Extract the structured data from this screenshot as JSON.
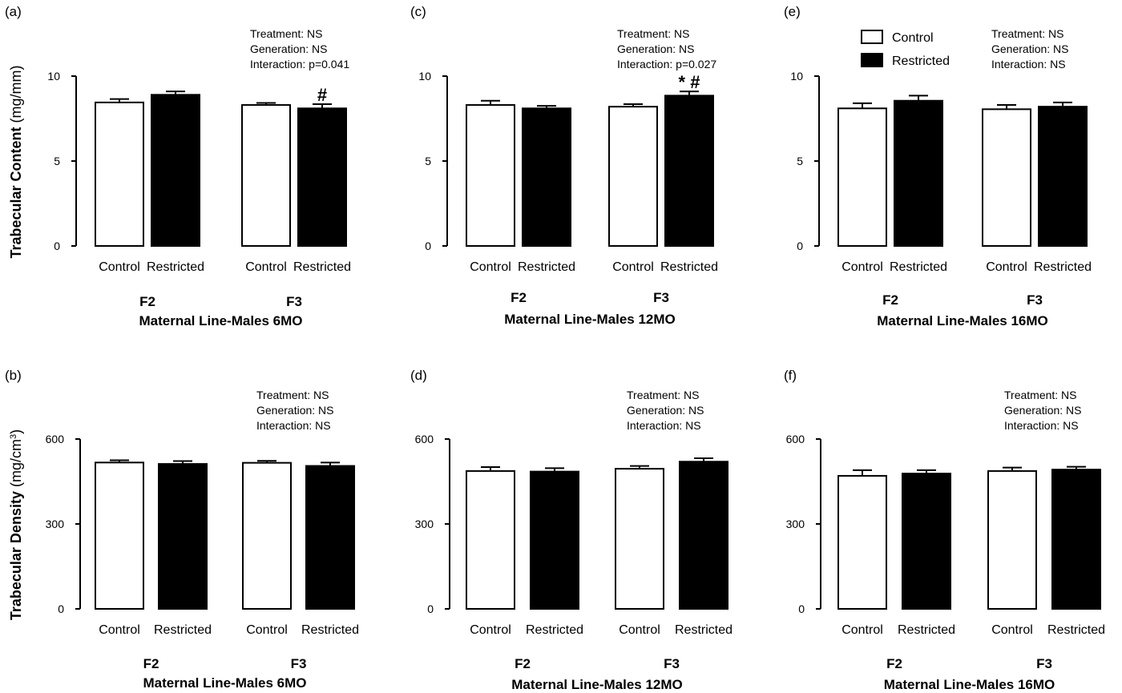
{
  "y_titles": {
    "content": {
      "main": "Trabecular Content",
      "unit": "(mg/mm)"
    },
    "density": {
      "main": "Trabecular Density",
      "unit_pre": "(mg/cm",
      "unit_sup": "3",
      "unit_post": ")"
    }
  },
  "legend": [
    {
      "label": "Control",
      "color": "#ffffff"
    },
    {
      "label": "Restricted",
      "color": "#000000"
    }
  ],
  "chart_data": [
    {
      "panel": "(a)",
      "type": "bar",
      "xlabel": "Maternal Line-Males 6MO",
      "ylabel": "Trabecular Content (mg/mm)",
      "ylim": [
        0,
        10
      ],
      "yticks": [
        0,
        5,
        10
      ],
      "groups": [
        "F2",
        "F3"
      ],
      "categories": [
        "Control",
        "Restricted"
      ],
      "series": [
        {
          "name": "Control",
          "values": [
            8.45,
            8.3
          ],
          "errors": [
            0.2,
            0.12
          ]
        },
        {
          "name": "Restricted",
          "values": [
            8.9,
            8.1
          ],
          "errors": [
            0.2,
            0.25
          ]
        }
      ],
      "stats": [
        "Treatment: NS",
        "Generation: NS",
        "Interaction: p=0.041"
      ],
      "annotations": [
        {
          "group": 1,
          "series": 1,
          "text": "#"
        }
      ]
    },
    {
      "panel": "(c)",
      "type": "bar",
      "xlabel": "Maternal Line-Males 12MO",
      "ylabel": "Trabecular Content (mg/mm)",
      "ylim": [
        0,
        10
      ],
      "yticks": [
        0,
        5,
        10
      ],
      "groups": [
        "F2",
        "F3"
      ],
      "categories": [
        "Control",
        "Restricted"
      ],
      "series": [
        {
          "name": "Control",
          "values": [
            8.3,
            8.2
          ],
          "errors": [
            0.25,
            0.15
          ]
        },
        {
          "name": "Restricted",
          "values": [
            8.1,
            8.85
          ],
          "errors": [
            0.15,
            0.25
          ]
        }
      ],
      "stats": [
        "Treatment: NS",
        "Generation: NS",
        "Interaction: p=0.027"
      ],
      "annotations": [
        {
          "group": 1,
          "series": 1,
          "text": "* #"
        }
      ]
    },
    {
      "panel": "(e)",
      "type": "bar",
      "xlabel": "Maternal Line-Males 16MO",
      "ylabel": "Trabecular Content (mg/mm)",
      "ylim": [
        0,
        10
      ],
      "yticks": [
        0,
        5,
        10
      ],
      "groups": [
        "F2",
        "F3"
      ],
      "categories": [
        "Control",
        "Restricted"
      ],
      "series": [
        {
          "name": "Control",
          "values": [
            8.1,
            8.05
          ],
          "errors": [
            0.3,
            0.25
          ]
        },
        {
          "name": "Restricted",
          "values": [
            8.55,
            8.2
          ],
          "errors": [
            0.3,
            0.25
          ]
        }
      ],
      "stats": [
        "Treatment: NS",
        "Generation: NS",
        "Interaction: NS"
      ],
      "annotations": [],
      "show_legend": true
    },
    {
      "panel": "(b)",
      "type": "bar",
      "xlabel": "Maternal Line-Males 6MO",
      "ylabel": "Trabecular Density (mg/cm3)",
      "ylim": [
        0,
        600
      ],
      "yticks": [
        0,
        300,
        600
      ],
      "groups": [
        "F2",
        "F3"
      ],
      "categories": [
        "Control",
        "Restricted"
      ],
      "series": [
        {
          "name": "Control",
          "values": [
            517,
            516
          ],
          "errors": [
            8,
            7
          ]
        },
        {
          "name": "Restricted",
          "values": [
            512,
            505
          ],
          "errors": [
            10,
            12
          ]
        }
      ],
      "stats": [
        "Treatment: NS",
        "Generation: NS",
        "Interaction: NS"
      ],
      "annotations": []
    },
    {
      "panel": "(d)",
      "type": "bar",
      "xlabel": "Maternal Line-Males 12MO",
      "ylabel": "Trabecular Density (mg/cm3)",
      "ylim": [
        0,
        600
      ],
      "yticks": [
        0,
        300,
        600
      ],
      "groups": [
        "F2",
        "F3"
      ],
      "categories": [
        "Control",
        "Restricted"
      ],
      "series": [
        {
          "name": "Control",
          "values": [
            487,
            495
          ],
          "errors": [
            14,
            10
          ]
        },
        {
          "name": "Restricted",
          "values": [
            485,
            520
          ],
          "errors": [
            12,
            12
          ]
        }
      ],
      "stats": [
        "Treatment: NS",
        "Generation: NS",
        "Interaction: NS"
      ],
      "annotations": []
    },
    {
      "panel": "(f)",
      "type": "bar",
      "xlabel": "Maternal Line-Males 16MO",
      "ylabel": "Trabecular Density (mg/cm3)",
      "ylim": [
        0,
        600
      ],
      "yticks": [
        0,
        300,
        600
      ],
      "groups": [
        "F2",
        "F3"
      ],
      "categories": [
        "Control",
        "Restricted"
      ],
      "series": [
        {
          "name": "Control",
          "values": [
            470,
            487
          ],
          "errors": [
            20,
            12
          ]
        },
        {
          "name": "Restricted",
          "values": [
            478,
            492
          ],
          "errors": [
            12,
            10
          ]
        }
      ],
      "stats": [
        "Treatment: NS",
        "Generation: NS",
        "Interaction: NS"
      ],
      "annotations": []
    }
  ]
}
